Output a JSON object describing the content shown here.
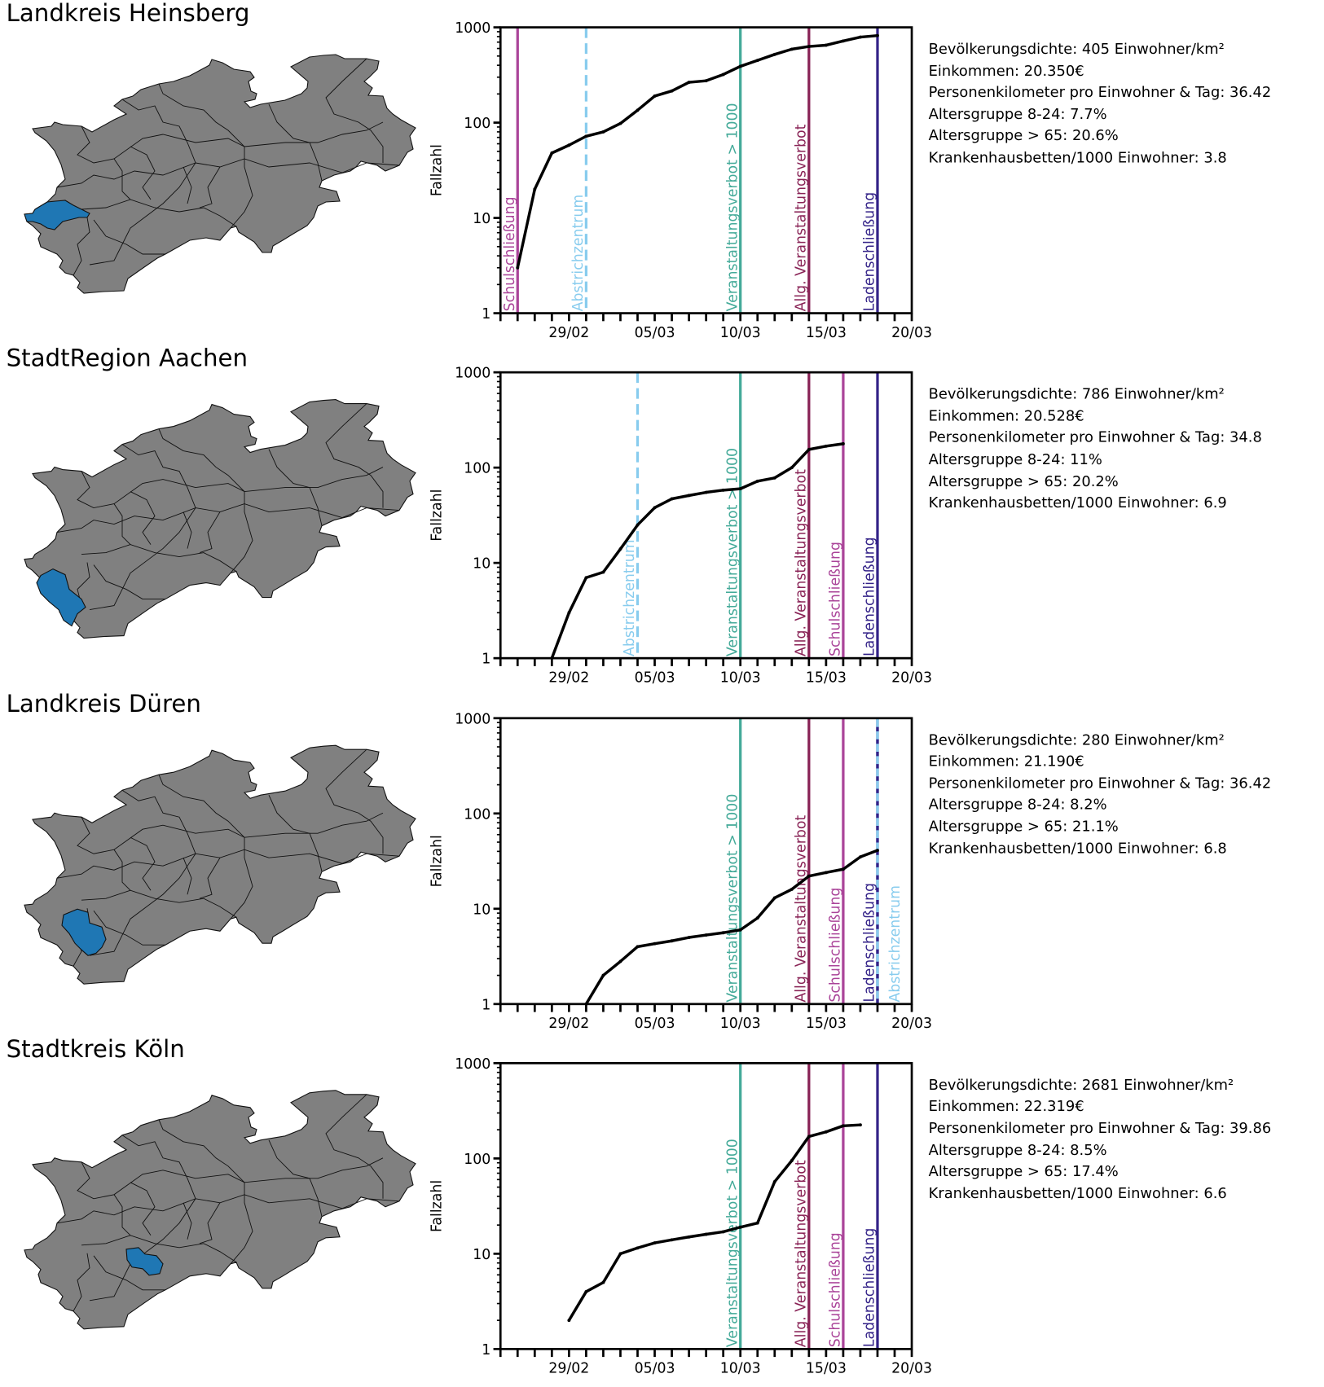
{
  "panels": [
    {
      "title": "Landkreis Heinsberg",
      "info": [
        "Bevölkerungsdichte: 405 Einwohner/km²",
        "Einkommen: 20.350€",
        "Personenkilometer pro Einwohner & Tag: 36.42",
        "Altersgruppe 8-24: 7.7%",
        "Altersgruppe > 65: 20.6%",
        "Krankenhausbetten/1000 Einwohner: 3.8"
      ],
      "map_highlight": "Landkreis Heinsberg"
    },
    {
      "title": "StadtRegion Aachen",
      "info": [
        "Bevölkerungsdichte: 786 Einwohner/km²",
        "Einkommen: 20.528€",
        "Personenkilometer pro Einwohner & Tag: 34.8",
        "Altersgruppe 8-24: 11%",
        "Altersgruppe > 65: 20.2%",
        "Krankenhausbetten/1000 Einwohner: 6.9"
      ],
      "map_highlight": "StadtRegion Aachen"
    },
    {
      "title": "Landkreis Düren",
      "info": [
        "Bevölkerungsdichte: 280 Einwohner/km²",
        "Einkommen: 21.190€",
        "Personenkilometer pro Einwohner & Tag: 36.42",
        "Altersgruppe 8-24: 8.2%",
        "Altersgruppe > 65: 21.1%",
        "Krankenhausbetten/1000 Einwohner: 6.8"
      ],
      "map_highlight": "Landkreis Düren"
    },
    {
      "title": "Stadtkreis Köln",
      "info": [
        "Bevölkerungsdichte: 2681 Einwohner/km²",
        "Einkommen: 22.319€",
        "Personenkilometer pro Einwohner & Tag: 39.86",
        "Altersgruppe 8-24: 8.5%",
        "Altersgruppe > 65: 17.4%",
        "Krankenhausbetten/1000 Einwohner: 6.6"
      ],
      "map_highlight": "Stadtkreis Köln"
    }
  ],
  "colors": {
    "map_fill": "#808080",
    "map_highlight": "#1f77b4",
    "Schulschließung": "#aa4499",
    "Abstrichzentrum": "#88ccee",
    "Veranstaltungsverbot > 1000": "#44aa99",
    "Allg. Veranstaltungsverbot": "#882255",
    "Ladenschließung": "#332288",
    "series": "#000000"
  },
  "chart_data": [
    {
      "type": "line",
      "ylabel": "Fallzahl",
      "yscale": "log",
      "ylim": [
        1,
        1000
      ],
      "yticks": [
        "1",
        "10",
        "100",
        "1000"
      ],
      "xlim": [
        "25/02",
        "20/03"
      ],
      "xticks": [
        "29/02",
        "05/03",
        "10/03",
        "15/03",
        "20/03"
      ],
      "x": [
        "26/02",
        "27/02",
        "28/02",
        "29/02",
        "01/03",
        "02/03",
        "03/03",
        "04/03",
        "05/03",
        "06/03",
        "07/03",
        "08/03",
        "09/03",
        "10/03",
        "11/03",
        "12/03",
        "13/03",
        "14/03",
        "15/03",
        "16/03",
        "17/03",
        "18/03"
      ],
      "y": [
        3,
        20,
        48,
        58,
        72,
        80,
        98,
        135,
        190,
        215,
        265,
        275,
        320,
        390,
        450,
        520,
        590,
        630,
        650,
        720,
        790,
        820
      ],
      "events": [
        {
          "label": "Schulschließung",
          "date": "26/02",
          "style": "solid"
        },
        {
          "label": "Abstrichzentrum",
          "date": "01/03",
          "style": "dashed"
        },
        {
          "label": "Veranstaltungsverbot > 1000",
          "date": "10/03",
          "style": "solid"
        },
        {
          "label": "Allg. Veranstaltungsverbot",
          "date": "14/03",
          "style": "solid"
        },
        {
          "label": "Ladenschließung",
          "date": "18/03",
          "style": "solid"
        }
      ]
    },
    {
      "type": "line",
      "ylabel": "Fallzahl",
      "yscale": "log",
      "ylim": [
        1,
        1000
      ],
      "yticks": [
        "1",
        "10",
        "100",
        "1000"
      ],
      "xlim": [
        "25/02",
        "20/03"
      ],
      "xticks": [
        "29/02",
        "05/03",
        "10/03",
        "15/03",
        "20/03"
      ],
      "x": [
        "28/02",
        "29/02",
        "01/03",
        "02/03",
        "03/03",
        "04/03",
        "05/03",
        "06/03",
        "07/03",
        "08/03",
        "09/03",
        "10/03",
        "11/03",
        "12/03",
        "13/03",
        "14/03",
        "15/03",
        "16/03"
      ],
      "y": [
        1,
        3,
        7,
        8,
        14,
        25,
        38,
        47,
        51,
        55,
        58,
        60,
        72,
        78,
        100,
        155,
        168,
        178
      ],
      "events": [
        {
          "label": "Abstrichzentrum",
          "date": "04/03",
          "style": "dashed"
        },
        {
          "label": "Veranstaltungsverbot > 1000",
          "date": "10/03",
          "style": "solid"
        },
        {
          "label": "Allg. Veranstaltungsverbot",
          "date": "14/03",
          "style": "solid"
        },
        {
          "label": "Schulschließung",
          "date": "16/03",
          "style": "solid"
        },
        {
          "label": "Ladenschließung",
          "date": "18/03",
          "style": "solid"
        }
      ]
    },
    {
      "type": "line",
      "ylabel": "Fallzahl",
      "yscale": "log",
      "ylim": [
        1,
        1000
      ],
      "yticks": [
        "1",
        "10",
        "100",
        "1000"
      ],
      "xlim": [
        "25/02",
        "20/03"
      ],
      "xticks": [
        "29/02",
        "05/03",
        "10/03",
        "15/03",
        "20/03"
      ],
      "x": [
        "01/03",
        "02/03",
        "03/03",
        "04/03",
        "05/03",
        "06/03",
        "07/03",
        "08/03",
        "09/03",
        "10/03",
        "11/03",
        "12/03",
        "13/03",
        "14/03",
        "15/03",
        "16/03",
        "17/03",
        "18/03"
      ],
      "y": [
        1,
        2,
        2.8,
        4,
        4.3,
        4.6,
        5,
        5.3,
        5.6,
        6,
        8,
        13,
        16,
        22,
        24,
        26,
        35,
        41
      ],
      "events": [
        {
          "label": "Veranstaltungsverbot > 1000",
          "date": "10/03",
          "style": "solid"
        },
        {
          "label": "Allg. Veranstaltungsverbot",
          "date": "14/03",
          "style": "solid"
        },
        {
          "label": "Schulschließung",
          "date": "16/03",
          "style": "solid"
        },
        {
          "label": "Ladenschließung",
          "date": "18/03",
          "style": "solid"
        },
        {
          "label": "Abstrichzentrum",
          "date": "18/03",
          "style": "dashed"
        }
      ]
    },
    {
      "type": "line",
      "ylabel": "Fallzahl",
      "yscale": "log",
      "ylim": [
        1,
        1000
      ],
      "yticks": [
        "1",
        "10",
        "100",
        "1000"
      ],
      "xlim": [
        "25/02",
        "20/03"
      ],
      "xticks": [
        "29/02",
        "05/03",
        "10/03",
        "15/03",
        "20/03"
      ],
      "x": [
        "29/02",
        "01/03",
        "02/03",
        "03/03",
        "04/03",
        "05/03",
        "06/03",
        "07/03",
        "08/03",
        "09/03",
        "10/03",
        "11/03",
        "12/03",
        "13/03",
        "14/03",
        "15/03",
        "16/03",
        "17/03"
      ],
      "y": [
        2,
        4,
        5,
        10,
        11.5,
        13,
        14,
        15,
        16,
        17,
        19,
        21,
        57,
        95,
        170,
        190,
        220,
        225
      ],
      "events": [
        {
          "label": "Veranstaltungsverbot > 1000",
          "date": "10/03",
          "style": "solid"
        },
        {
          "label": "Allg. Veranstaltungsverbot",
          "date": "14/03",
          "style": "solid"
        },
        {
          "label": "Schulschließung",
          "date": "16/03",
          "style": "solid"
        },
        {
          "label": "Ladenschließung",
          "date": "18/03",
          "style": "solid"
        }
      ]
    }
  ]
}
